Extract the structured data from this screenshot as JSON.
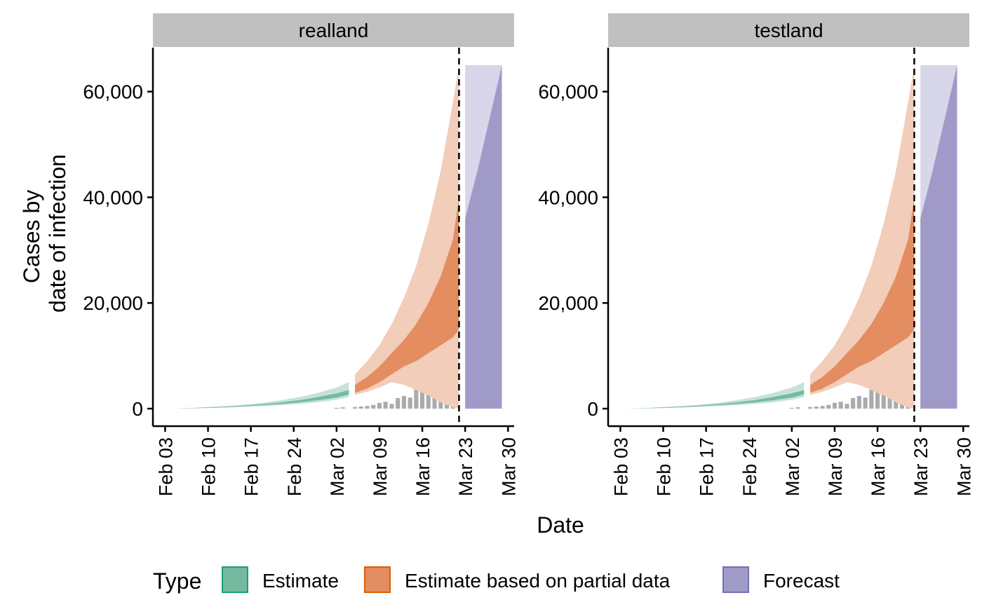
{
  "chart_data": {
    "type": "area",
    "xlabel": "Date",
    "ylabel": [
      "Cases by",
      "date of infection"
    ],
    "ylim": [
      0,
      65000
    ],
    "y_ticks": [
      0,
      20000,
      40000,
      60000
    ],
    "y_tick_labels": [
      "0",
      "20,000",
      "40,000",
      "60,000"
    ],
    "x_range": [
      "2020-02-01",
      "2020-03-31"
    ],
    "x_ticks": [
      "2020-02-03",
      "2020-02-10",
      "2020-02-17",
      "2020-02-24",
      "2020-03-02",
      "2020-03-09",
      "2020-03-16",
      "2020-03-23",
      "2020-03-30"
    ],
    "x_tick_labels": [
      "Feb 03",
      "Feb 10",
      "Feb 17",
      "Feb 24",
      "Mar 02",
      "Mar 09",
      "Mar 16",
      "Mar 23",
      "Mar 30"
    ],
    "estimate_end": "2020-03-04",
    "partial_start": "2020-03-05",
    "partial_end": "2020-03-22",
    "forecast_start": "2020-03-23",
    "forecast_end": "2020-03-29",
    "vline_date": "2020-03-22",
    "legend": {
      "title": "Type",
      "position": "bottom",
      "items": [
        {
          "label": "Estimate",
          "fill": "#75BA9F",
          "stroke": "#1B9E77"
        },
        {
          "label": "Estimate based on partial data",
          "fill": "#E48D60",
          "stroke": "#D95F02"
        },
        {
          "label": "Forecast",
          "fill": "#A09AC8",
          "stroke": "#7570B3"
        }
      ]
    },
    "colors": {
      "estimate_outer": "#C6E2D7",
      "estimate_inner": "#75BA9F",
      "partial_outer": "#F1CDBA",
      "partial_inner": "#E48D60",
      "forecast_outer": "#D8D6E9",
      "forecast_inner": "#A09AC8",
      "bars": "#ABABAB",
      "strip": "#C0C0C0"
    },
    "panels": [
      {
        "name": "realland",
        "estimate": {
          "x": [
            "2020-02-04",
            "2020-02-07",
            "2020-02-10",
            "2020-02-13",
            "2020-02-16",
            "2020-02-19",
            "2020-02-22",
            "2020-02-25",
            "2020-02-28",
            "2020-03-02",
            "2020-03-04"
          ],
          "lower_outer": [
            0,
            40,
            100,
            200,
            350,
            500,
            650,
            900,
            1200,
            1700,
            2200
          ],
          "lower_inner": [
            0,
            60,
            150,
            280,
            450,
            650,
            900,
            1200,
            1600,
            2100,
            2700
          ],
          "upper_inner": [
            0,
            90,
            220,
            380,
            600,
            850,
            1200,
            1600,
            2200,
            2900,
            3500
          ],
          "upper_outer": [
            0,
            120,
            300,
            500,
            750,
            1100,
            1600,
            2200,
            3000,
            4000,
            5000
          ]
        },
        "partial": {
          "x": [
            "2020-03-05",
            "2020-03-07",
            "2020-03-09",
            "2020-03-11",
            "2020-03-13",
            "2020-03-15",
            "2020-03-17",
            "2020-03-19",
            "2020-03-21",
            "2020-03-22"
          ],
          "lower_outer": [
            2600,
            3200,
            4000,
            5000,
            4500,
            3500,
            2500,
            1200,
            200,
            0
          ],
          "lower_inner": [
            3000,
            3800,
            5000,
            6500,
            8000,
            9000,
            10500,
            12000,
            13500,
            15000
          ],
          "upper_inner": [
            4500,
            6000,
            8000,
            10500,
            13000,
            16000,
            20000,
            25000,
            32000,
            40000
          ],
          "upper_outer": [
            6500,
            9000,
            12000,
            16000,
            21000,
            27000,
            35000,
            45000,
            58000,
            65000
          ]
        },
        "forecast": {
          "x": [
            "2020-03-23",
            "2020-03-25",
            "2020-03-27",
            "2020-03-29"
          ],
          "lower_outer": [
            0,
            0,
            0,
            0
          ],
          "lower_inner": [
            0,
            0,
            0,
            0
          ],
          "upper_inner": [
            36000,
            45000,
            55000,
            65000
          ],
          "upper_outer": [
            65000,
            65000,
            65000,
            65000
          ]
        },
        "bars": {
          "x": [
            "2020-03-02",
            "2020-03-03",
            "2020-03-05",
            "2020-03-06",
            "2020-03-07",
            "2020-03-08",
            "2020-03-09",
            "2020-03-10",
            "2020-03-11",
            "2020-03-12",
            "2020-03-13",
            "2020-03-14",
            "2020-03-15",
            "2020-03-16",
            "2020-03-17",
            "2020-03-18",
            "2020-03-19",
            "2020-03-20",
            "2020-03-21"
          ],
          "values": [
            150,
            250,
            300,
            400,
            500,
            700,
            1100,
            1300,
            900,
            2000,
            2400,
            2100,
            3600,
            3200,
            2700,
            3600,
            4100,
            5100,
            5800
          ]
        }
      },
      {
        "name": "testland",
        "estimate": {
          "x": [
            "2020-02-04",
            "2020-02-07",
            "2020-02-10",
            "2020-02-13",
            "2020-02-16",
            "2020-02-19",
            "2020-02-22",
            "2020-02-25",
            "2020-02-28",
            "2020-03-02",
            "2020-03-04"
          ],
          "lower_outer": [
            0,
            40,
            100,
            200,
            350,
            500,
            650,
            900,
            1200,
            1700,
            2200
          ],
          "lower_inner": [
            0,
            60,
            150,
            280,
            450,
            650,
            900,
            1200,
            1600,
            2100,
            2700
          ],
          "upper_inner": [
            0,
            90,
            220,
            380,
            600,
            850,
            1200,
            1600,
            2200,
            2900,
            3500
          ],
          "upper_outer": [
            0,
            120,
            300,
            500,
            750,
            1100,
            1600,
            2200,
            3000,
            4000,
            5000
          ]
        },
        "partial": {
          "x": [
            "2020-03-05",
            "2020-03-07",
            "2020-03-09",
            "2020-03-11",
            "2020-03-13",
            "2020-03-15",
            "2020-03-17",
            "2020-03-19",
            "2020-03-21",
            "2020-03-22"
          ],
          "lower_outer": [
            2600,
            3200,
            4000,
            5000,
            4500,
            3500,
            2500,
            1200,
            200,
            0
          ],
          "lower_inner": [
            3000,
            3800,
            5000,
            6500,
            8000,
            9000,
            10500,
            12000,
            13500,
            15000
          ],
          "upper_inner": [
            4500,
            6000,
            8000,
            10500,
            13000,
            16000,
            20000,
            25000,
            32000,
            40000
          ],
          "upper_outer": [
            6500,
            9000,
            12000,
            16000,
            21000,
            27000,
            35000,
            45000,
            58000,
            65000
          ]
        },
        "forecast": {
          "x": [
            "2020-03-23",
            "2020-03-25",
            "2020-03-27",
            "2020-03-29"
          ],
          "lower_outer": [
            0,
            0,
            0,
            0
          ],
          "lower_inner": [
            0,
            0,
            0,
            0
          ],
          "upper_inner": [
            36000,
            45000,
            55000,
            65000
          ],
          "upper_outer": [
            65000,
            65000,
            65000,
            65000
          ]
        },
        "bars": {
          "x": [
            "2020-03-02",
            "2020-03-03",
            "2020-03-05",
            "2020-03-06",
            "2020-03-07",
            "2020-03-08",
            "2020-03-09",
            "2020-03-10",
            "2020-03-11",
            "2020-03-12",
            "2020-03-13",
            "2020-03-14",
            "2020-03-15",
            "2020-03-16",
            "2020-03-17",
            "2020-03-18",
            "2020-03-19",
            "2020-03-20",
            "2020-03-21"
          ],
          "values": [
            150,
            250,
            300,
            400,
            500,
            700,
            1100,
            1300,
            900,
            2000,
            2400,
            2100,
            3600,
            3200,
            2700,
            3600,
            4100,
            5100,
            5800
          ]
        }
      }
    ]
  }
}
